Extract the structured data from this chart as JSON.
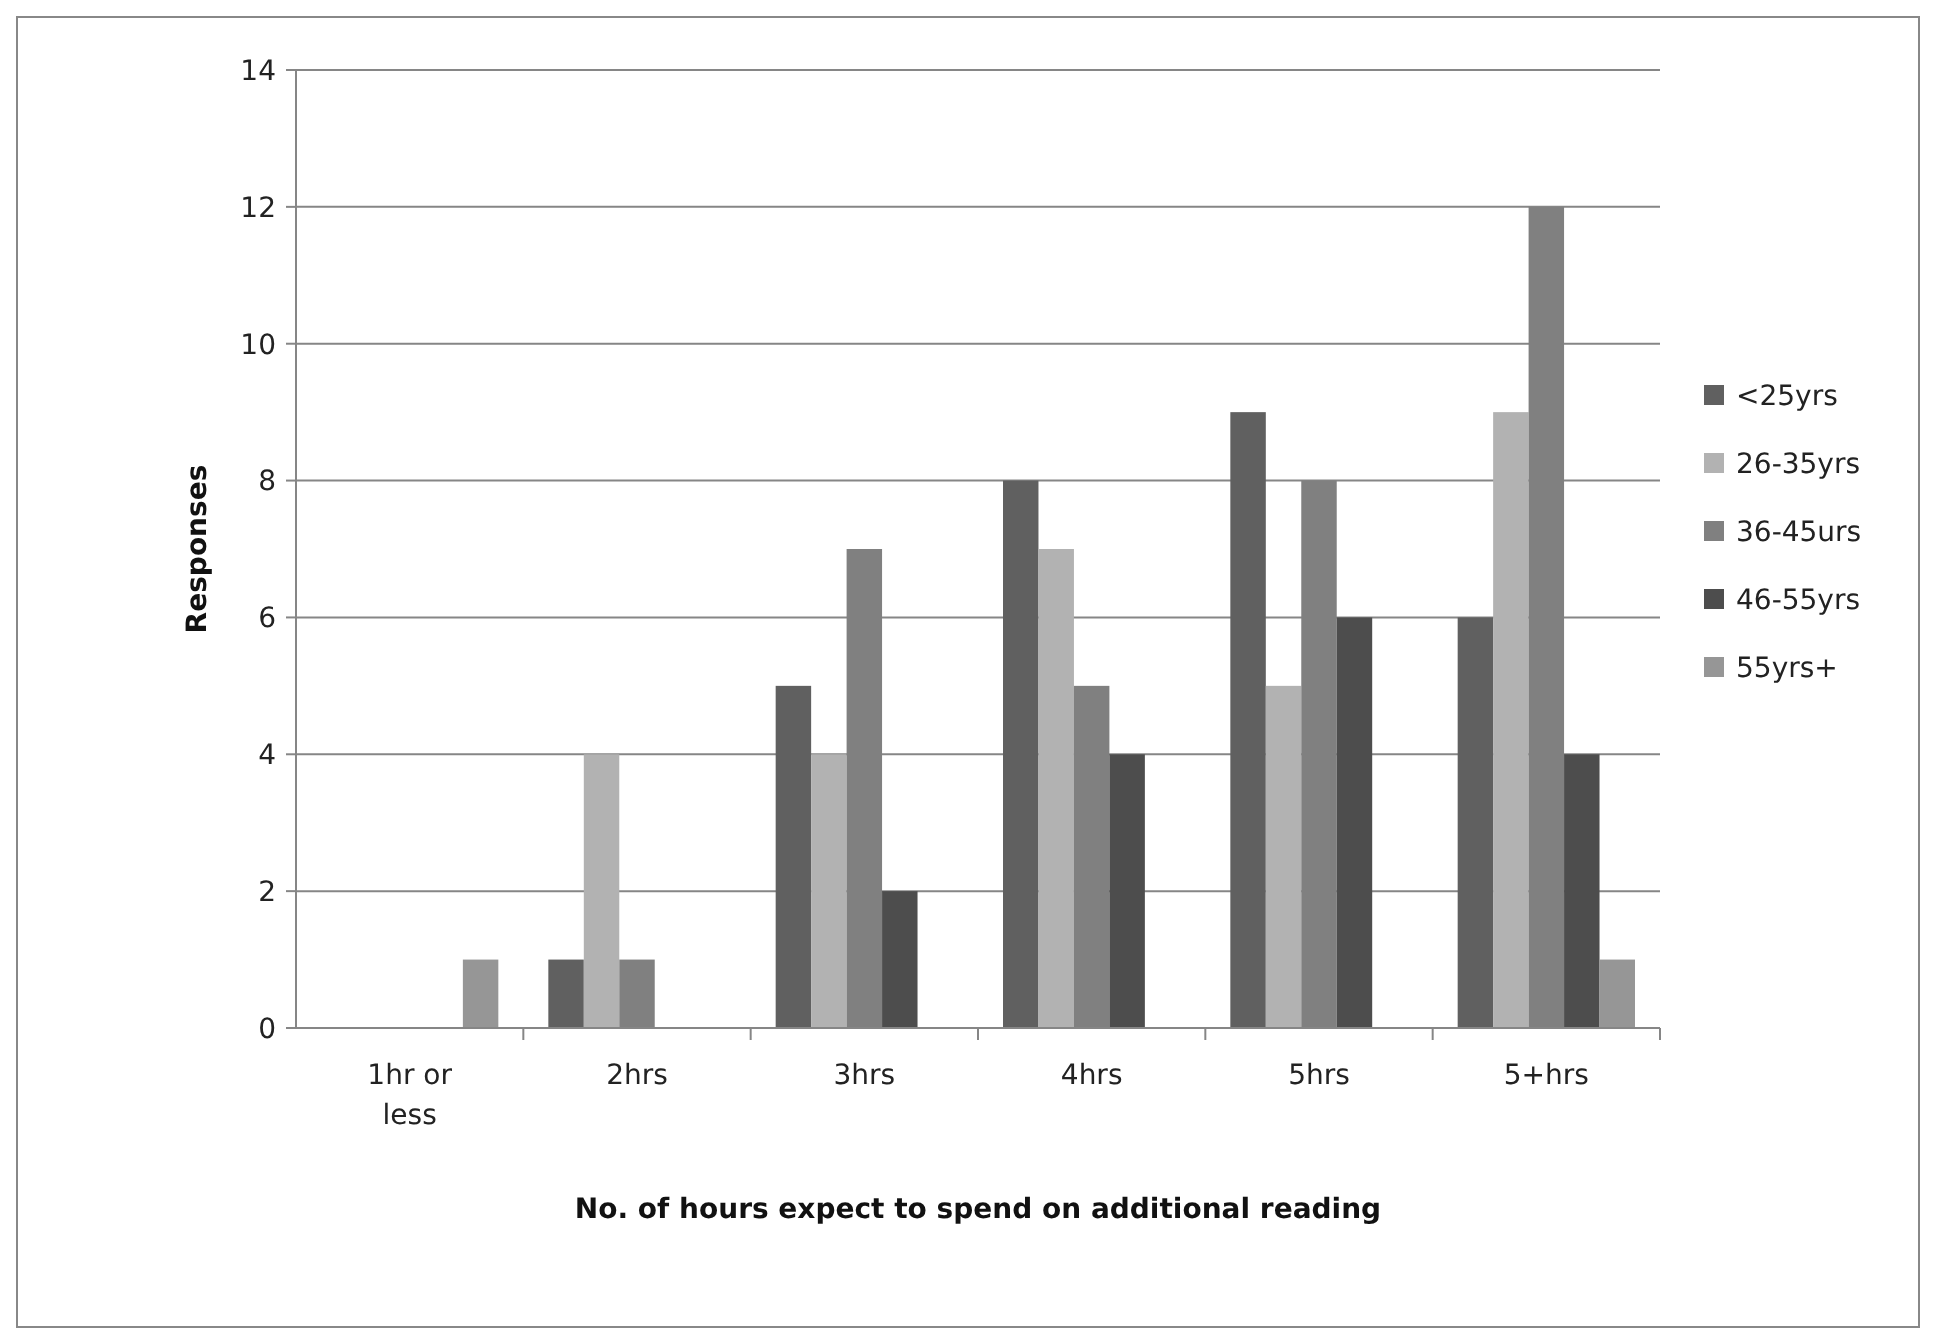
{
  "chart_data": {
    "type": "bar",
    "xlabel": "No. of hours expect to spend on additional reading",
    "ylabel": "Responses",
    "categories": [
      "1hr or less",
      "2hrs",
      "3hrs",
      "4hrs",
      "5hrs",
      "5+hrs"
    ],
    "series": [
      {
        "name": "<25yrs",
        "color": "#606060",
        "values": [
          0,
          1,
          5,
          8,
          9,
          6
        ]
      },
      {
        "name": "26-35yrs",
        "color": "#b2b2b2",
        "values": [
          0,
          4,
          4,
          7,
          5,
          9
        ]
      },
      {
        "name": "36-45urs",
        "color": "#808080",
        "values": [
          0,
          1,
          7,
          5,
          8,
          12
        ]
      },
      {
        "name": "46-55yrs",
        "color": "#4d4d4d",
        "values": [
          0,
          0,
          2,
          4,
          6,
          4
        ]
      },
      {
        "name": "55yrs+",
        "color": "#969696",
        "values": [
          1,
          0,
          0,
          0,
          0,
          1
        ]
      }
    ],
    "ylim": [
      0,
      14
    ],
    "yticks": [
      0,
      2,
      4,
      6,
      8,
      10,
      12,
      14
    ],
    "grid": "y",
    "legend": "right"
  }
}
